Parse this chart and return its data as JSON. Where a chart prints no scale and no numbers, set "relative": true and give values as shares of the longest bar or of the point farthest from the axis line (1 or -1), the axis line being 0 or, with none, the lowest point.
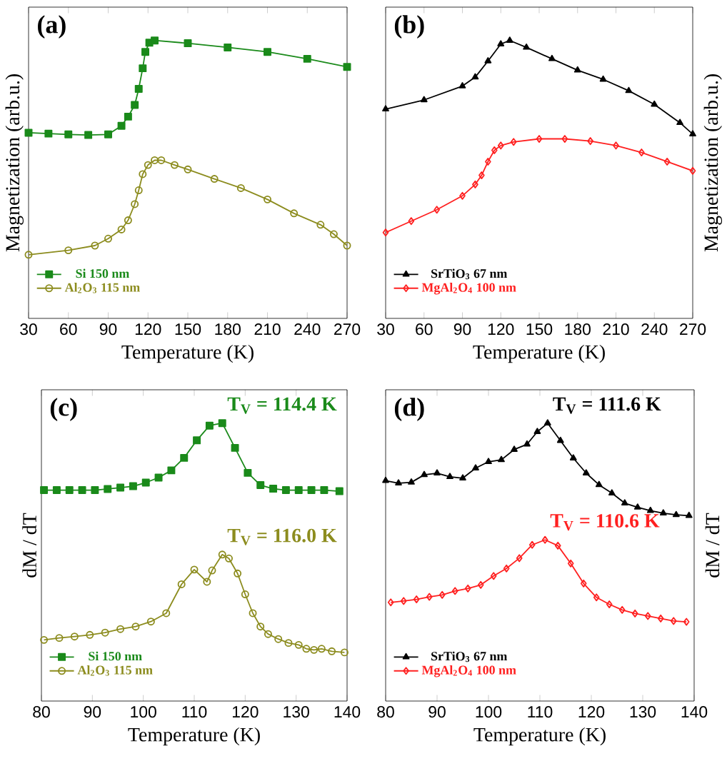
{
  "chart_data": [
    {
      "type": "line",
      "title": "(a)",
      "xlabel": "Temperature (K)",
      "ylabel": "Magnetization (arb.u.)",
      "relative": true,
      "xlim": [
        30,
        270
      ],
      "xticks": [
        30,
        60,
        90,
        120,
        150,
        180,
        210,
        240,
        270
      ],
      "legend": "bottom left",
      "tick_labels": "x",
      "series": [
        {
          "name": "Si 150 nm",
          "color": "#1a8a1a",
          "marker": "square",
          "x": [
            30,
            45,
            60,
            75,
            90,
            100,
            105,
            110,
            113,
            116,
            118,
            121,
            125,
            150,
            180,
            210,
            240,
            270
          ],
          "values": [
            0.668,
            0.665,
            0.662,
            0.66,
            0.662,
            0.693,
            0.726,
            0.768,
            0.826,
            0.9,
            0.959,
            0.992,
            1.0,
            0.99,
            0.975,
            0.959,
            0.934,
            0.905
          ]
        },
        {
          "name": "Al$_{2}$O$_{3}$ 115 nm",
          "color": "#8c8c1e",
          "marker": "circle",
          "x": [
            30,
            60,
            80,
            90,
            100,
            105,
            110,
            113,
            116,
            120,
            125,
            130,
            140,
            150,
            170,
            190,
            210,
            230,
            250,
            260,
            270
          ],
          "values": [
            0.229,
            0.245,
            0.262,
            0.287,
            0.32,
            0.353,
            0.411,
            0.461,
            0.519,
            0.552,
            0.569,
            0.569,
            0.552,
            0.536,
            0.502,
            0.469,
            0.428,
            0.378,
            0.337,
            0.303,
            0.262
          ]
        }
      ]
    },
    {
      "type": "line",
      "title": "(b)",
      "xlabel": "Temperature (K)",
      "y2label": "Magnetization (arb.u.)",
      "relative": true,
      "xlim": [
        30,
        270
      ],
      "xticks": [
        30,
        60,
        90,
        120,
        150,
        180,
        210,
        240,
        270
      ],
      "legend": "bottom left",
      "tick_labels": "x",
      "series": [
        {
          "name": "SrTiO$_{3}$ 67 nm",
          "color": "#000000",
          "marker": "triangle",
          "x": [
            30,
            60,
            90,
            100,
            110,
            120,
            127,
            140,
            160,
            180,
            200,
            220,
            240,
            260,
            270
          ],
          "values": [
            0.753,
            0.786,
            0.836,
            0.868,
            0.926,
            0.987,
            1.0,
            0.975,
            0.934,
            0.893,
            0.86,
            0.819,
            0.77,
            0.704,
            0.663
          ]
        },
        {
          "name": "MgAl$_{2}$O$_{4}$ 100 nm",
          "color": "#ff2020",
          "marker": "diamond",
          "x": [
            30,
            50,
            70,
            90,
            100,
            105,
            110,
            115,
            120,
            130,
            150,
            170,
            190,
            210,
            230,
            250,
            270
          ],
          "values": [
            0.309,
            0.35,
            0.391,
            0.441,
            0.482,
            0.515,
            0.564,
            0.605,
            0.622,
            0.635,
            0.646,
            0.646,
            0.638,
            0.622,
            0.597,
            0.564,
            0.531
          ]
        }
      ]
    },
    {
      "type": "line",
      "title": "(c)",
      "xlabel": "Temperature (K)",
      "ylabel": "dM / dT",
      "relative": true,
      "xlim": [
        80,
        140
      ],
      "xticks": [
        80,
        90,
        100,
        110,
        120,
        130,
        140
      ],
      "legend": "bottom left",
      "tick_labels": "x",
      "annotations": [
        "T$_{V}$ = 114.4 K",
        "T$_{V}$ = 116.0 K"
      ],
      "series": [
        {
          "name": "Si 150 nm",
          "color": "#1a8a1a",
          "marker": "square",
          "x": [
            80.5,
            83,
            85.5,
            88,
            90.5,
            93,
            95.5,
            98,
            100.5,
            103,
            105.5,
            108,
            110.5,
            113,
            115.5,
            118,
            120.5,
            123,
            125.5,
            128,
            130.5,
            133,
            135.5,
            138.5
          ],
          "values": [
            0.759,
            0.759,
            0.759,
            0.759,
            0.759,
            0.763,
            0.768,
            0.773,
            0.786,
            0.804,
            0.83,
            0.875,
            0.938,
            0.991,
            1.0,
            0.911,
            0.821,
            0.777,
            0.764,
            0.759,
            0.759,
            0.759,
            0.759,
            0.755
          ]
        },
        {
          "name": "Al$_{2}$O$_{3}$ 115 nm",
          "color": "#8c8c1e",
          "marker": "circle",
          "x": [
            80.5,
            83.5,
            86.5,
            89.5,
            92.5,
            95.5,
            98.5,
            101.5,
            104.5,
            107.5,
            110,
            112.5,
            113.5,
            115.5,
            116.8,
            118.5,
            120,
            121.5,
            123,
            124.5,
            126.5,
            128.5,
            130.5,
            132,
            133.5,
            135,
            137,
            139.5
          ],
          "values": [
            0.22,
            0.227,
            0.232,
            0.238,
            0.246,
            0.259,
            0.268,
            0.286,
            0.316,
            0.42,
            0.473,
            0.429,
            0.47,
            0.527,
            0.513,
            0.459,
            0.384,
            0.316,
            0.268,
            0.241,
            0.223,
            0.209,
            0.202,
            0.188,
            0.184,
            0.188,
            0.179,
            0.175
          ]
        }
      ]
    },
    {
      "type": "line",
      "title": "(d)",
      "xlabel": "Temperature (K)",
      "y2label": "dM / dT",
      "relative": true,
      "xlim": [
        80,
        140
      ],
      "xticks": [
        80,
        90,
        100,
        110,
        120,
        130,
        140
      ],
      "legend": "bottom left",
      "tick_labels": "x",
      "annotations": [
        "T$_{V}$ = 111.6 K",
        "T$_{V}$ = 110.6 K"
      ],
      "series": [
        {
          "name": "SrTiO$_{3}$ 67 nm",
          "color": "#000000",
          "marker": "triangle",
          "x": [
            80,
            82.5,
            85,
            87.5,
            90,
            92.5,
            95,
            97.5,
            100,
            102.5,
            105,
            107.5,
            109.5,
            111.5,
            114,
            116.5,
            119,
            121.5,
            124,
            126.5,
            129,
            131.5,
            134,
            136.5,
            139
          ],
          "values": [
            0.793,
            0.784,
            0.787,
            0.814,
            0.82,
            0.807,
            0.802,
            0.838,
            0.861,
            0.868,
            0.905,
            0.924,
            0.969,
            1.0,
            0.937,
            0.874,
            0.82,
            0.778,
            0.748,
            0.712,
            0.697,
            0.685,
            0.676,
            0.67,
            0.667
          ]
        },
        {
          "name": "MgAl$_{2}$O$_{4}$ 100 nm",
          "color": "#ff2020",
          "marker": "diamond",
          "x": [
            81,
            83.5,
            86,
            88.5,
            91,
            93.5,
            96,
            98.5,
            101,
            103.5,
            106,
            108.5,
            111,
            113.5,
            116,
            118.5,
            121,
            123.5,
            126,
            128.5,
            131,
            133.5,
            136,
            138.5
          ],
          "values": [
            0.355,
            0.36,
            0.366,
            0.375,
            0.382,
            0.396,
            0.405,
            0.418,
            0.45,
            0.477,
            0.514,
            0.562,
            0.58,
            0.559,
            0.495,
            0.423,
            0.373,
            0.348,
            0.328,
            0.315,
            0.306,
            0.297,
            0.288,
            0.285
          ]
        }
      ]
    }
  ]
}
